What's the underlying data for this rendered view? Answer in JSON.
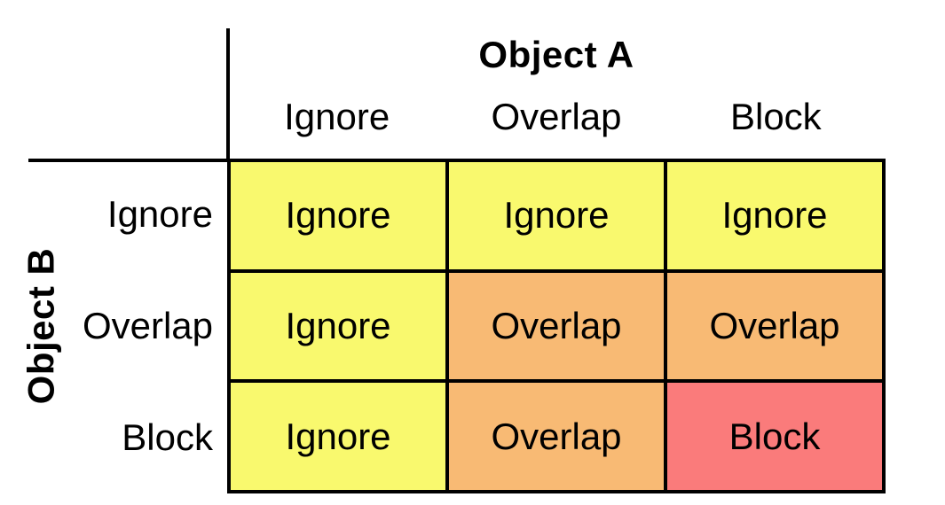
{
  "diagram": {
    "column_axis": {
      "title": "Object A",
      "headers": [
        "Ignore",
        "Overlap",
        "Block"
      ]
    },
    "row_axis": {
      "title": "Object B",
      "headers": [
        "Ignore",
        "Overlap",
        "Block"
      ]
    },
    "rows": [
      {
        "cells": [
          {
            "label": "Ignore",
            "state": "ignore"
          },
          {
            "label": "Ignore",
            "state": "ignore"
          },
          {
            "label": "Ignore",
            "state": "ignore"
          }
        ]
      },
      {
        "cells": [
          {
            "label": "Ignore",
            "state": "ignore"
          },
          {
            "label": "Overlap",
            "state": "overlap"
          },
          {
            "label": "Overlap",
            "state": "overlap"
          }
        ]
      },
      {
        "cells": [
          {
            "label": "Ignore",
            "state": "ignore"
          },
          {
            "label": "Overlap",
            "state": "overlap"
          },
          {
            "label": "Block",
            "state": "block"
          }
        ]
      }
    ]
  },
  "colors": {
    "ignore": "#F9F96E",
    "overlap": "#F8BA74",
    "block": "#FA7B7B",
    "grid_line": "#000000",
    "background": "#FFFFFF",
    "text": "#000000"
  }
}
